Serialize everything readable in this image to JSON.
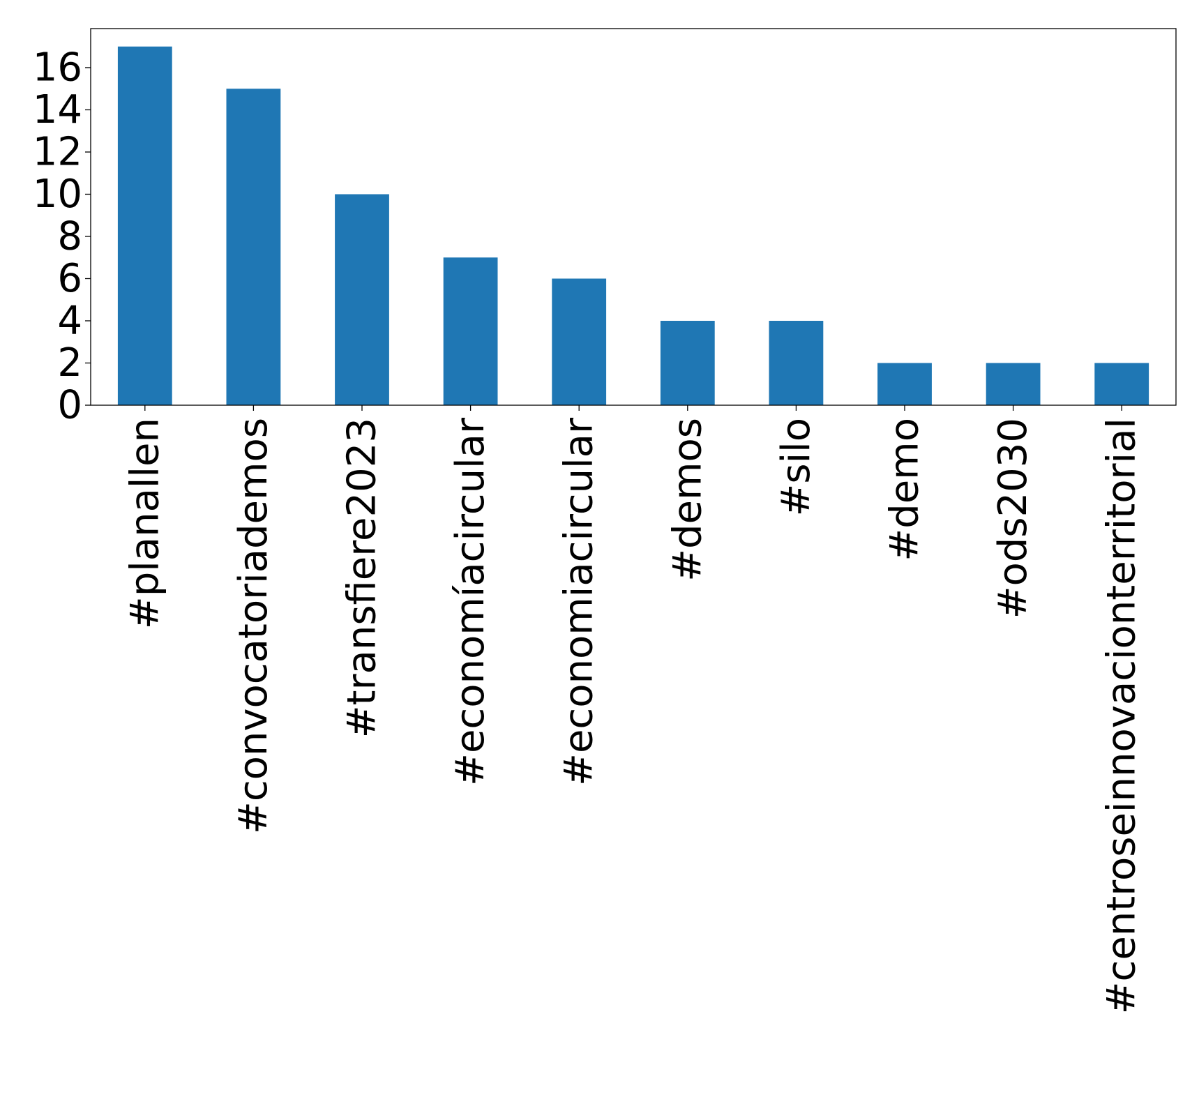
{
  "chart_data": {
    "type": "bar",
    "title": "",
    "xlabel": "",
    "ylabel": "",
    "categories": [
      "#planallen",
      "#convocatoriademos",
      "#transfiere2023",
      "#economíacircular",
      "#economiacircular",
      "#demos",
      "#silo",
      "#demo",
      "#ods2030",
      "#centroseinnovacionterritorial"
    ],
    "values": [
      17,
      15,
      10,
      7,
      6,
      4,
      4,
      2,
      2,
      2
    ],
    "ylim": [
      0,
      17.85
    ],
    "yticks": [
      0,
      2,
      4,
      6,
      8,
      10,
      12,
      14,
      16
    ],
    "bar_color": "#1f77b4",
    "grid": false,
    "legend": "none"
  }
}
